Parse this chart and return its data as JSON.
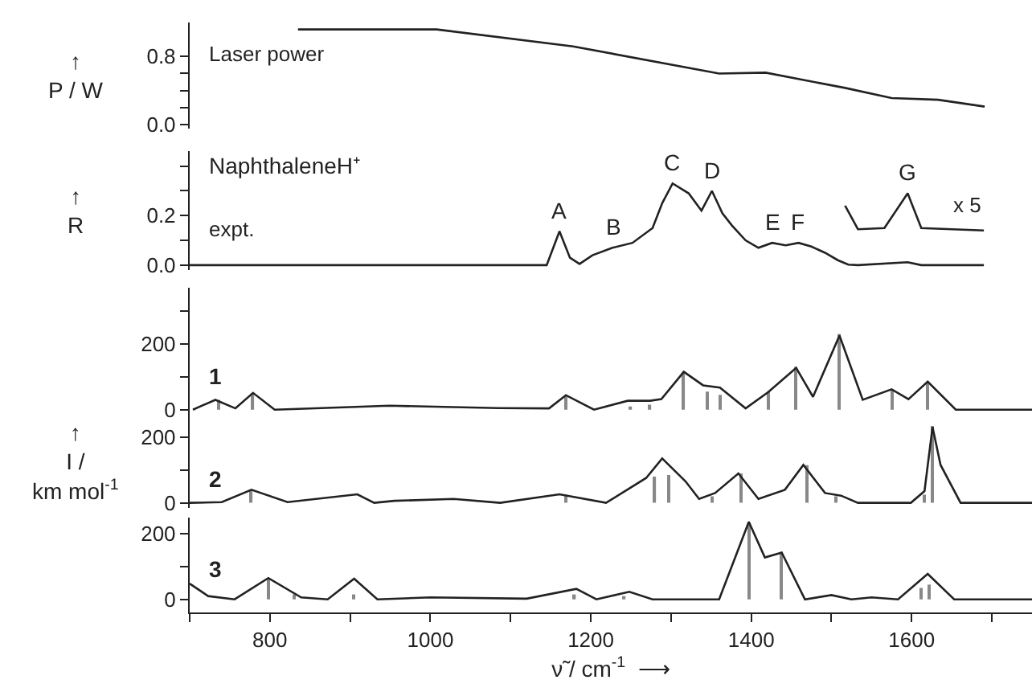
{
  "chart_data": [
    {
      "type": "line",
      "ylabel": "↑\nP / W",
      "xlim": [
        700,
        1750
      ],
      "ylim": [
        -0.05,
        1.2
      ],
      "yticks": [
        {
          "value": 0.0,
          "label": "0.0"
        },
        {
          "value": 0.2,
          "label": null
        },
        {
          "value": 0.4,
          "label": null
        },
        {
          "value": 0.6,
          "label": null
        },
        {
          "value": 0.8,
          "label": "0.8"
        }
      ],
      "tick_labels": "y",
      "marker": "none",
      "series": [
        {
          "name": "Laser power",
          "color": "#222222",
          "x": [
            835,
            1008,
            1178,
            1360,
            1418,
            1517,
            1575,
            1633,
            1691
          ],
          "values": [
            1.12,
            1.12,
            0.92,
            0.6,
            0.61,
            0.43,
            0.31,
            0.29,
            0.21
          ]
        }
      ]
    },
    {
      "type": "line",
      "title": "NaphthaleneH⁺",
      "ylabel": "↑\nR",
      "xlim": [
        700,
        1750
      ],
      "ylim": [
        -0.02,
        0.46
      ],
      "yticks": [
        {
          "value": 0.0,
          "label": "0.0"
        },
        {
          "value": 0.1,
          "label": null
        },
        {
          "value": 0.2,
          "label": "0.2"
        },
        {
          "value": 0.3,
          "label": null
        },
        {
          "value": 0.4,
          "label": null
        }
      ],
      "tick_labels": "y",
      "marker": "none",
      "annotations": [
        {
          "text": "A",
          "x": 1161,
          "y": 0.137
        },
        {
          "text": "B",
          "x": 1227,
          "y": 0.07
        },
        {
          "text": "C",
          "x": 1302,
          "y": 0.33
        },
        {
          "text": "D",
          "x": 1351,
          "y": 0.3
        },
        {
          "text": "E",
          "x": 1426,
          "y": 0.09
        },
        {
          "text": "F",
          "x": 1459,
          "y": 0.09
        },
        {
          "text": "G",
          "x": 1595,
          "y": 0.29
        }
      ],
      "series": [
        {
          "name": "expt.",
          "color": "#222222",
          "x": [
            700,
            1145,
            1161,
            1174,
            1186,
            1202,
            1227,
            1252,
            1277,
            1289,
            1302,
            1322,
            1338,
            1351,
            1364,
            1376,
            1393,
            1409,
            1426,
            1443,
            1459,
            1475,
            1492,
            1508,
            1521,
            1533,
            1595,
            1612,
            1690
          ],
          "values": [
            0.0,
            0.0,
            0.137,
            0.03,
            0.005,
            0.04,
            0.07,
            0.09,
            0.15,
            0.25,
            0.33,
            0.29,
            0.22,
            0.3,
            0.21,
            0.16,
            0.1,
            0.07,
            0.09,
            0.08,
            0.09,
            0.075,
            0.05,
            0.02,
            0.002,
            0.0,
            0.012,
            0.0,
            0.0
          ]
        },
        {
          "name": "x 5",
          "color": "#222222",
          "x": [
            1517,
            1533,
            1566,
            1595,
            1612,
            1690
          ],
          "values": [
            0.24,
            0.145,
            0.15,
            0.29,
            0.15,
            0.14
          ]
        }
      ]
    },
    {
      "type": "line",
      "title": "1",
      "xlim": [
        700,
        1750
      ],
      "ylim": [
        -15,
        370
      ],
      "yticks": [
        0,
        {
          "value": 100,
          "label": null
        },
        200,
        {
          "value": 300,
          "label": null
        }
      ],
      "tick_labels": "y",
      "marker": "none",
      "series": [
        {
          "type": "bar",
          "color": "#888888",
          "x": [
            736,
            779,
            1169,
            1250,
            1274,
            1316,
            1346,
            1361,
            1421,
            1456,
            1510,
            1575,
            1620
          ],
          "values": [
            30,
            50,
            40,
            10,
            15,
            115,
            55,
            45,
            55,
            130,
            230,
            60,
            85
          ]
        },
        {
          "color": "#222222",
          "x": [
            704,
            732,
            757,
            779,
            806,
            949,
            1085,
            1148,
            1169,
            1204,
            1246,
            1274,
            1288,
            1316,
            1340,
            1361,
            1393,
            1421,
            1456,
            1477,
            1510,
            1539,
            1575,
            1596,
            1620,
            1655,
            1750
          ],
          "values": [
            0,
            30,
            4,
            51,
            0,
            12,
            5,
            4,
            44,
            0,
            27,
            27,
            32,
            115,
            74,
            67,
            4,
            53,
            127,
            39,
            225,
            30,
            62,
            32,
            85,
            0,
            0
          ]
        }
      ]
    },
    {
      "type": "line",
      "title": "2",
      "ylabel": "↑\nI /\nkm mol$^{-1}$",
      "xlim": [
        700,
        1750
      ],
      "ylim": [
        -15,
        270
      ],
      "yticks": [
        0,
        {
          "value": 100,
          "label": null
        },
        200
      ],
      "tick_labels": "y",
      "marker": "none",
      "series": [
        {
          "type": "bar",
          "color": "#888888",
          "x": [
            777,
            1169,
            1280,
            1297,
            1352,
            1387,
            1469,
            1505,
            1615,
            1626
          ],
          "values": [
            40,
            25,
            80,
            85,
            20,
            90,
            115,
            20,
            25,
            235
          ]
        },
        {
          "color": "#222222",
          "x": [
            700,
            740,
            777,
            822,
            909,
            930,
            955,
            1029,
            1087,
            1161,
            1219,
            1269,
            1289,
            1318,
            1335,
            1355,
            1384,
            1409,
            1442,
            1465,
            1492,
            1512,
            1533,
            1599,
            1616,
            1626,
            1636,
            1661,
            1750
          ],
          "values": [
            0,
            2,
            40,
            2,
            26,
            0,
            6,
            12,
            0,
            26,
            0,
            76,
            136,
            66,
            12,
            30,
            90,
            12,
            40,
            116,
            30,
            22,
            0,
            0,
            36,
            232,
            116,
            0,
            0
          ]
        }
      ]
    },
    {
      "type": "line",
      "title": "3",
      "xlabel": "ν̃ / cm$^{-1}$  ⟶",
      "xlim": [
        700,
        1750
      ],
      "xticks": [
        {
          "value": 700,
          "label": null
        },
        800,
        {
          "value": 900,
          "label": null
        },
        1000,
        {
          "value": 1100,
          "label": null
        },
        1200,
        {
          "value": 1300,
          "label": null
        },
        1400,
        {
          "value": 1500,
          "label": null
        },
        1600,
        {
          "value": 1700,
          "label": null
        }
      ],
      "ylim": [
        -40,
        250
      ],
      "yticks": [
        0,
        {
          "value": 100,
          "label": null
        },
        200
      ],
      "marker": "none",
      "series": [
        {
          "type": "bar",
          "color": "#888888",
          "x": [
            798,
            830,
            905,
            1180,
            1242,
            1398,
            1438,
            1612,
            1622
          ],
          "values": [
            65,
            15,
            15,
            15,
            10,
            235,
            145,
            35,
            45
          ]
        },
        {
          "color": "#222222",
          "x": [
            700,
            723,
            756,
            798,
            839,
            872,
            905,
            934,
            1000,
            1120,
            1182,
            1207,
            1248,
            1277,
            1360,
            1397,
            1417,
            1438,
            1467,
            1500,
            1525,
            1550,
            1583,
            1620,
            1653,
            1750
          ],
          "values": [
            48,
            10,
            0,
            65,
            6,
            0,
            63,
            0,
            6,
            2,
            32,
            0,
            23,
            0,
            0,
            237,
            128,
            143,
            0,
            13,
            0,
            6,
            0,
            78,
            0,
            0
          ]
        }
      ]
    }
  ]
}
